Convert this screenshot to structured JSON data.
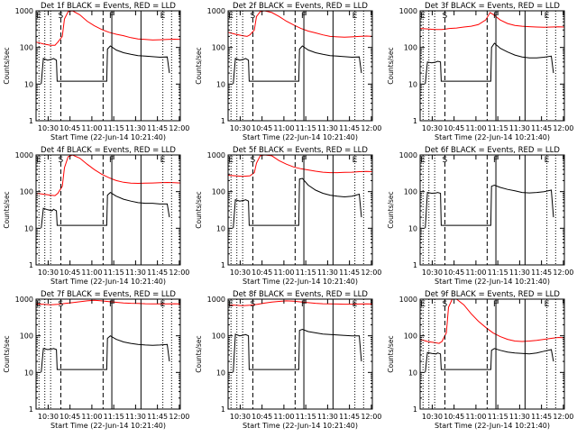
{
  "chart_data": {
    "type": "line",
    "ylabel": "Counts/sec",
    "xlabel": "Start Time (22-Jun-14 10:21:40)",
    "yscale": "log",
    "ylim": [
      1,
      1000
    ],
    "ytick_labels": [
      "1",
      "10",
      "100",
      "1000"
    ],
    "xlim_minutes_after_start": [
      0,
      99
    ],
    "colors": {
      "events": "#000000",
      "lld": "#ff0000",
      "markers": "#000000"
    },
    "legend_note": "BLACK = Events, RED = LLD",
    "panels": [
      {
        "title": "Det 1f BLACK = Events, RED = LLD",
        "xtick_labels": [
          "10:30",
          "10:45",
          "11:00",
          "11:15",
          "11:30",
          "11:45",
          "12:00"
        ],
        "marker_letters": [
          "E",
          "S",
          "F",
          "E"
        ],
        "series": [
          {
            "name": "Events",
            "x": [
              3.5,
              5,
              8,
              11,
              12,
              14,
              14.5,
              48.5,
              49,
              51,
              55,
              60,
              65,
              70,
              75,
              80,
              85,
              90,
              91.5
            ],
            "y": [
              10,
              50,
              45,
              48,
              50,
              45,
              12,
              12,
              90,
              110,
              85,
              72,
              65,
              60,
              58,
              56,
              54,
              55,
              20
            ]
          },
          {
            "name": "LLD",
            "x": [
              0,
              5,
              10,
              13,
              15,
              18,
              19.5,
              22,
              25,
              30,
              35,
              40,
              45,
              50,
              55,
              60,
              65,
              70,
              75,
              80,
              85,
              90,
              95,
              99
            ],
            "y": [
              140,
              125,
              115,
              115,
              140,
              200,
              600,
              950,
              1000,
              780,
              520,
              390,
              310,
              260,
              230,
              210,
              185,
              170,
              165,
              160,
              162,
              165,
              168,
              165
            ]
          }
        ]
      },
      {
        "title": "Det 2f BLACK = Events, RED = LLD",
        "xtick_labels": [
          "10:30",
          "10:45",
          "11:00",
          "11:15",
          "11:30",
          "11:45",
          "12:00"
        ],
        "marker_letters": [
          "E",
          "S",
          "F",
          "E"
        ],
        "series": [
          {
            "name": "Events",
            "x": [
              3.5,
              5,
              8,
              11,
              12,
              14,
              14.5,
              48.5,
              49,
              51,
              55,
              60,
              65,
              70,
              75,
              80,
              85,
              90,
              91.5
            ],
            "y": [
              10,
              50,
              45,
              48,
              50,
              45,
              12,
              12,
              90,
              110,
              85,
              72,
              65,
              60,
              58,
              56,
              54,
              55,
              20
            ]
          },
          {
            "name": "LLD",
            "x": [
              0,
              5,
              10,
              13,
              15,
              18,
              19.5,
              22,
              25,
              30,
              35,
              40,
              45,
              50,
              55,
              60,
              65,
              70,
              75,
              80,
              85,
              90,
              95,
              99
            ],
            "y": [
              260,
              230,
              210,
              200,
              220,
              300,
              700,
              950,
              1000,
              900,
              700,
              520,
              410,
              330,
              280,
              250,
              220,
              200,
              195,
              190,
              195,
              200,
              205,
              200
            ]
          }
        ]
      },
      {
        "title": "Det 3f BLACK = Events, RED = LLD",
        "xtick_labels": [
          "10:30",
          "10:45",
          "11:00",
          "11:15",
          "11:30",
          "11:45",
          "12:00"
        ],
        "marker_letters": [
          "E",
          "S",
          "F",
          "E"
        ],
        "series": [
          {
            "name": "Events",
            "x": [
              3.5,
              5,
              8,
              11,
              12,
              14,
              14.5,
              48.5,
              49,
              51,
              55,
              60,
              65,
              70,
              75,
              80,
              85,
              90,
              91.5
            ],
            "y": [
              10,
              40,
              38,
              40,
              42,
              40,
              12,
              12,
              100,
              130,
              95,
              75,
              62,
              55,
              52,
              52,
              54,
              58,
              20
            ]
          },
          {
            "name": "LLD",
            "x": [
              0,
              5,
              10,
              15,
              18,
              20,
              25,
              30,
              35,
              40,
              45,
              48,
              50,
              55,
              60,
              65,
              70,
              75,
              80,
              85,
              90,
              95,
              99
            ],
            "y": [
              330,
              320,
              310,
              310,
              320,
              330,
              340,
              360,
              380,
              420,
              560,
              900,
              800,
              560,
              450,
              400,
              380,
              370,
              360,
              355,
              360,
              365,
              360
            ]
          }
        ]
      },
      {
        "title": "Det 4f BLACK = Events, RED = LLD",
        "xtick_labels": [
          "10:30",
          "10:45",
          "11:00",
          "11:15",
          "11:30",
          "11:45",
          "12:00"
        ],
        "marker_letters": [
          "E",
          "S",
          "F",
          "E"
        ],
        "series": [
          {
            "name": "Events",
            "x": [
              3.5,
              5,
              8,
              11,
              12,
              14,
              14.5,
              48.5,
              49,
              51,
              55,
              60,
              65,
              70,
              75,
              80,
              85,
              90,
              91.5
            ],
            "y": [
              10,
              35,
              32,
              30,
              33,
              30,
              12,
              12,
              80,
              95,
              75,
              62,
              55,
              50,
              48,
              48,
              46,
              46,
              20
            ]
          },
          {
            "name": "LLD",
            "x": [
              0,
              5,
              10,
              13,
              15,
              18,
              19.5,
              22,
              25,
              30,
              35,
              40,
              45,
              50,
              55,
              60,
              65,
              70,
              75,
              80,
              85,
              90,
              95,
              99
            ],
            "y": [
              90,
              85,
              80,
              78,
              90,
              140,
              450,
              900,
              1000,
              820,
              560,
              400,
              300,
              240,
              200,
              180,
              170,
              168,
              170,
              172,
              175,
              178,
              175,
              172
            ]
          }
        ]
      },
      {
        "title": "Det 5f BLACK = Events, RED = LLD",
        "xtick_labels": [
          "10:30",
          "10:45",
          "11:00",
          "11:15",
          "11:30",
          "11:45",
          "12:00"
        ],
        "marker_letters": [
          "E",
          "S",
          "F",
          "E"
        ],
        "series": [
          {
            "name": "Events",
            "x": [
              3.5,
              5,
              8,
              11,
              12,
              14,
              14.5,
              48.5,
              49,
              51,
              55,
              60,
              65,
              70,
              75,
              80,
              85,
              90,
              91.5
            ],
            "y": [
              10,
              60,
              55,
              58,
              60,
              55,
              12,
              12,
              220,
              230,
              150,
              110,
              90,
              80,
              75,
              72,
              75,
              85,
              20
            ]
          },
          {
            "name": "LLD",
            "x": [
              0,
              5,
              10,
              15,
              18,
              19.5,
              22,
              25,
              30,
              35,
              40,
              45,
              50,
              55,
              60,
              65,
              70,
              75,
              80,
              85,
              90,
              95,
              99
            ],
            "y": [
              280,
              270,
              260,
              270,
              330,
              600,
              950,
              1000,
              950,
              700,
              560,
              470,
              420,
              390,
              360,
              340,
              330,
              330,
              335,
              340,
              350,
              355,
              350
            ]
          }
        ]
      },
      {
        "title": "Det 6f BLACK = Events, RED = LLD",
        "xtick_labels": [
          "10:30",
          "10:45",
          "11:00",
          "11:15",
          "11:30",
          "11:45",
          "12:00"
        ],
        "marker_letters": [
          "E",
          "S",
          "F",
          "E"
        ],
        "series": [
          {
            "name": "Events",
            "x": [
              3.5,
              5,
              8,
              11,
              12,
              14,
              14.5,
              48.5,
              49,
              51,
              55,
              60,
              65,
              70,
              75,
              80,
              85,
              90,
              91.5
            ],
            "y": [
              10,
              95,
              90,
              92,
              95,
              90,
              12,
              12,
              140,
              150,
              130,
              115,
              105,
              95,
              92,
              95,
              100,
              110,
              20
            ]
          }
        ]
      },
      {
        "title": "Det 7f BLACK = Events, RED = LLD",
        "xtick_labels": [
          "10:30",
          "10:45",
          "11:00",
          "11:15",
          "11:30",
          "11:45",
          "12:00"
        ],
        "marker_letters": [
          "E",
          "S",
          "F",
          "E"
        ],
        "series": [
          {
            "name": "Events",
            "x": [
              3.5,
              5,
              8,
              11,
              12,
              14,
              14.5,
              48.5,
              49,
              51,
              55,
              60,
              65,
              70,
              75,
              80,
              85,
              90,
              91.5
            ],
            "y": [
              10,
              45,
              42,
              44,
              45,
              42,
              12,
              12,
              85,
              100,
              80,
              68,
              62,
              58,
              56,
              55,
              56,
              58,
              20
            ]
          },
          {
            "name": "LLD",
            "x": [
              0,
              5,
              10,
              15,
              20,
              25,
              30,
              35,
              40,
              45,
              50,
              55,
              60,
              65,
              70,
              75,
              80,
              85,
              90,
              95,
              99
            ],
            "y": [
              740,
              720,
              700,
              720,
              760,
              800,
              850,
              900,
              930,
              900,
              860,
              820,
              790,
              770,
              760,
              750,
              745,
              740,
              745,
              750,
              745
            ]
          }
        ]
      },
      {
        "title": "Det 8f BLACK = Events, RED = LLD",
        "xtick_labels": [
          "10:30",
          "10:45",
          "11:00",
          "11:15",
          "11:30",
          "11:45",
          "12:00"
        ],
        "marker_letters": [
          "E",
          "S",
          "F",
          "E"
        ],
        "series": [
          {
            "name": "Events",
            "x": [
              3.5,
              5,
              8,
              11,
              12,
              14,
              14.5,
              48.5,
              49,
              51,
              55,
              60,
              65,
              70,
              75,
              80,
              85,
              90,
              91.5
            ],
            "y": [
              10,
              110,
              100,
              105,
              108,
              100,
              12,
              12,
              140,
              150,
              130,
              120,
              112,
              108,
              105,
              102,
              100,
              100,
              20
            ]
          },
          {
            "name": "LLD",
            "x": [
              0,
              5,
              10,
              15,
              20,
              25,
              30,
              35,
              40,
              45,
              50,
              55,
              60,
              65,
              70,
              75,
              80,
              85,
              90,
              95,
              99
            ],
            "y": [
              700,
              680,
              660,
              680,
              720,
              780,
              830,
              870,
              900,
              880,
              840,
              800,
              770,
              750,
              740,
              735,
              730,
              730,
              735,
              740,
              735
            ]
          }
        ]
      },
      {
        "title": "Det 9f BLACK = Events, RED = LLD",
        "xtick_labels": [
          "10:30",
          "10:45",
          "11:00",
          "11:15",
          "11:30",
          "11:45",
          "12:00"
        ],
        "marker_letters": [
          "E",
          "S",
          "F",
          "E"
        ],
        "series": [
          {
            "name": "Events",
            "x": [
              3.5,
              5,
              8,
              11,
              12,
              14,
              14.5,
              48.5,
              49,
              51,
              55,
              60,
              65,
              70,
              75,
              80,
              85,
              90,
              91.5
            ],
            "y": [
              10,
              35,
              33,
              32,
              34,
              32,
              12,
              12,
              40,
              45,
              40,
              36,
              34,
              33,
              32,
              34,
              38,
              42,
              20
            ]
          },
          {
            "name": "LLD",
            "x": [
              0,
              5,
              10,
              13,
              15,
              18,
              19.5,
              22,
              25,
              30,
              35,
              40,
              45,
              50,
              55,
              60,
              65,
              70,
              75,
              80,
              85,
              90,
              95,
              99
            ],
            "y": [
              80,
              70,
              65,
              62,
              70,
              120,
              600,
              1000,
              1000,
              700,
              400,
              250,
              170,
              120,
              95,
              80,
              72,
              70,
              72,
              75,
              80,
              85,
              90,
              88
            ]
          }
        ]
      }
    ]
  }
}
